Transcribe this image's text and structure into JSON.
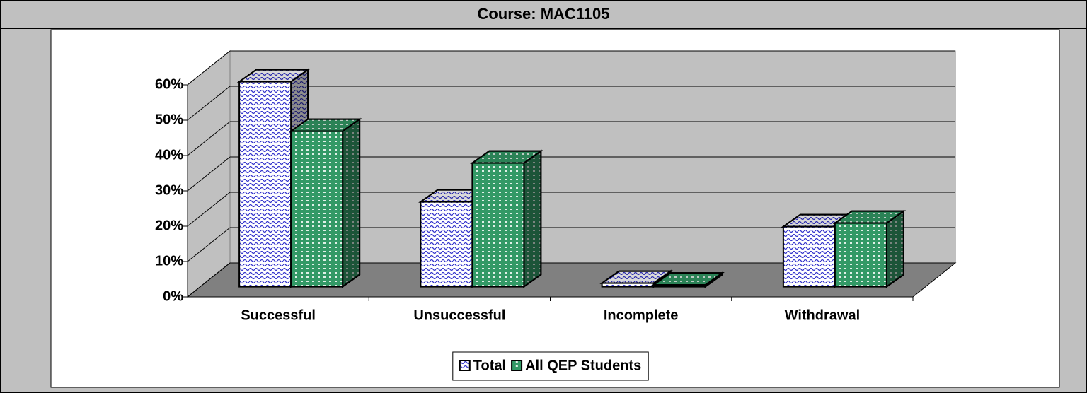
{
  "chart_data": {
    "type": "bar",
    "title": "Course:  MAC1105",
    "categories": [
      "Successful",
      "Unsuccessful",
      "Incomplete",
      "Withdrawal"
    ],
    "series": [
      {
        "name": "Total",
        "color": "#3333cc",
        "values": [
          58,
          24,
          1,
          17
        ]
      },
      {
        "name": "All QEP Students",
        "color": "#339966",
        "values": [
          44,
          35,
          0.5,
          18
        ]
      }
    ],
    "ylim": [
      0,
      60
    ],
    "yticks": [
      {
        "value": 0,
        "label": "0%"
      },
      {
        "value": 10,
        "label": "10%"
      },
      {
        "value": 20,
        "label": "20%"
      },
      {
        "value": 30,
        "label": "30%"
      },
      {
        "value": 40,
        "label": "40%"
      },
      {
        "value": 50,
        "label": "50%"
      },
      {
        "value": 60,
        "label": "60%"
      }
    ],
    "grid": true
  }
}
